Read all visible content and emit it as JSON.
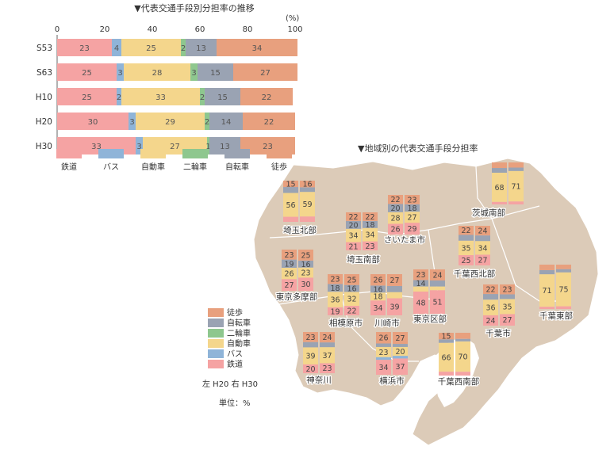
{
  "colors": {
    "rail": "#f5a3a3",
    "bus": "#8fb4d8",
    "car": "#f4d68c",
    "moto": "#8ec78e",
    "bicycle": "#9aa3b3",
    "walk": "#e8a07e",
    "map": "#dccbb8",
    "map_border": "#ffffff"
  },
  "chart_data": [
    {
      "type": "bar",
      "stacked": true,
      "orientation": "horizontal",
      "title": "▼代表交通手段別分担率の推移",
      "unit_label": "(%)",
      "xlim": [
        0,
        100
      ],
      "x_ticks": [
        "0",
        "20",
        "40",
        "60",
        "80",
        "100"
      ],
      "categories": [
        "S53",
        "S63",
        "H10",
        "H20",
        "H30"
      ],
      "series": [
        {
          "name": "鉄道",
          "color_key": "rail",
          "values": [
            23,
            25,
            25,
            30,
            33
          ]
        },
        {
          "name": "バス",
          "color_key": "bus",
          "values": [
            4,
            3,
            2,
            3,
            3
          ]
        },
        {
          "name": "自動車",
          "color_key": "car",
          "values": [
            25,
            28,
            33,
            29,
            27
          ]
        },
        {
          "name": "二輪車",
          "color_key": "moto",
          "values": [
            2,
            3,
            2,
            2,
            1
          ]
        },
        {
          "name": "自転車",
          "color_key": "bicycle",
          "values": [
            13,
            15,
            15,
            14,
            13
          ]
        },
        {
          "name": "徒歩",
          "color_key": "walk",
          "values": [
            34,
            27,
            22,
            22,
            23
          ]
        }
      ],
      "legend_placement": "bottom"
    },
    {
      "type": "bar",
      "stacked": true,
      "title": "▼地域別の代表交通手段分担率",
      "legend": [
        "徒歩",
        "自転車",
        "二輪車",
        "自動車",
        "バス",
        "鉄道"
      ],
      "legend_note": "左 H20 右 H30",
      "unit_note": "単位：%",
      "regions": [
        {
          "name": "茨城南部",
          "h20": [
            6,
            0,
            68,
            0,
            11,
            13
          ],
          "h30": [
            7,
            0,
            71,
            0,
            8,
            12
          ]
        },
        {
          "name": "埼玉北部",
          "h20": [
            12,
            0,
            56,
            0,
            14,
            15
          ],
          "h30": [
            13,
            0,
            59,
            0,
            11,
            16
          ]
        },
        {
          "name": "さいたま市",
          "h20": [
            26,
            0,
            28,
            0,
            20,
            22
          ],
          "h30": [
            29,
            0,
            27,
            0,
            18,
            23
          ]
        },
        {
          "name": "埼玉南部",
          "h20": [
            21,
            0,
            34,
            0,
            20,
            22
          ],
          "h30": [
            23,
            0,
            34,
            0,
            18,
            22
          ]
        },
        {
          "name": "千葉西北部",
          "h20": [
            25,
            0,
            35,
            0,
            14,
            22
          ],
          "h30": [
            27,
            0,
            34,
            0,
            14,
            24
          ]
        },
        {
          "name": "東京多摩部",
          "h20": [
            27,
            0,
            26,
            0,
            19,
            23
          ],
          "h30": [
            30,
            0,
            23,
            0,
            16,
            25
          ]
        },
        {
          "name": "相模原市",
          "h20": [
            19,
            0,
            36,
            0,
            18,
            23
          ],
          "h30": [
            22,
            0,
            32,
            0,
            16,
            25
          ]
        },
        {
          "name": "川崎市",
          "h20": [
            34,
            0,
            18,
            0,
            16,
            26
          ],
          "h30": [
            39,
            0,
            14,
            0,
            14,
            27
          ]
        },
        {
          "name": "東京区部",
          "h20": [
            48,
            0,
            11,
            0,
            14,
            23
          ],
          "h30": [
            51,
            0,
            8,
            0,
            13,
            24
          ]
        },
        {
          "name": "千葉市",
          "h20": [
            24,
            0,
            36,
            0,
            13,
            22
          ],
          "h30": [
            27,
            0,
            35,
            0,
            11,
            23
          ]
        },
        {
          "name": "千葉東部",
          "h20": [
            5,
            0,
            71,
            0,
            9,
            12
          ],
          "h30": [
            6,
            0,
            75,
            0,
            7,
            10
          ]
        },
        {
          "name": "神奈川",
          "h20": [
            20,
            0,
            39,
            0,
            12,
            23
          ],
          "h30": [
            23,
            0,
            37,
            0,
            11,
            24
          ]
        },
        {
          "name": "横浜市",
          "h20": [
            34,
            6,
            23,
            0,
            8,
            26
          ],
          "h30": [
            37,
            6,
            20,
            0,
            7,
            27
          ]
        },
        {
          "name": "千葉西南部",
          "h20": [
            9,
            0,
            66,
            0,
            8,
            15
          ],
          "h30": [
            9,
            0,
            70,
            0,
            6,
            14
          ]
        }
      ]
    }
  ]
}
